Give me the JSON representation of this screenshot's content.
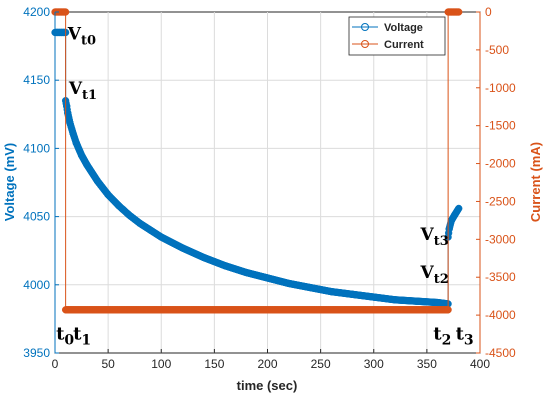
{
  "chart_data": {
    "type": "line",
    "xlabel": "time (sec)",
    "ylabel_left": "Voltage (mV)",
    "ylabel_right": "Current (mA)",
    "xlim": [
      0,
      400
    ],
    "ylim_left": [
      3950,
      4200
    ],
    "ylim_right": [
      -4500,
      0
    ],
    "x_ticks": [
      "0",
      "50",
      "100",
      "150",
      "200",
      "250",
      "300",
      "350",
      "400"
    ],
    "y_left_ticks": [
      "3950",
      "4000",
      "4050",
      "4100",
      "4150",
      "4200"
    ],
    "y_right_ticks": [
      "0",
      "-500",
      "-1000",
      "-1500",
      "-2000",
      "-2500",
      "-3000",
      "-3500",
      "-4000",
      "-4500"
    ],
    "grid": true,
    "legend_position": "top-right",
    "colors": {
      "voltage": "#0072BD",
      "current": "#D95319"
    },
    "series": [
      {
        "name": "Voltage",
        "axis": "left",
        "color": "#0072BD",
        "x": [
          0,
          2,
          4,
          6,
          8,
          10,
          10,
          11,
          12,
          14,
          17,
          20,
          25,
          30,
          40,
          50,
          60,
          70,
          80,
          90,
          100,
          120,
          140,
          160,
          180,
          200,
          220,
          240,
          260,
          280,
          300,
          320,
          340,
          360,
          370,
          370,
          371,
          373,
          376,
          380
        ],
        "y": [
          4185,
          4185,
          4185,
          4185,
          4185,
          4185,
          4135,
          4131,
          4126,
          4119,
          4111,
          4104,
          4095,
          4088,
          4076,
          4066,
          4058,
          4051,
          4045,
          4040,
          4035,
          4027,
          4020,
          4014,
          4009,
          4005,
          4001,
          3998,
          3995,
          3993,
          3991,
          3989,
          3988,
          3987,
          3986,
          4035,
          4041,
          4047,
          4051,
          4056
        ]
      },
      {
        "name": "Current",
        "axis": "right",
        "color": "#D95319",
        "x": [
          0,
          10,
          10,
          370,
          370,
          380
        ],
        "y": [
          0,
          0,
          -3930,
          -3930,
          0,
          0
        ]
      }
    ],
    "annotations": [
      {
        "text": "V",
        "sub": "t0",
        "x": 12,
        "y": 4180
      },
      {
        "text": "V",
        "sub": "t1",
        "x": 13,
        "y": 4140
      },
      {
        "text": "V",
        "sub": "t2",
        "x": 344,
        "y": 4005
      },
      {
        "text": "V",
        "sub": "t3",
        "x": 344,
        "y": 4033
      },
      {
        "text": "t",
        "sub": "0",
        "x": 1,
        "y": 3960
      },
      {
        "text": "t",
        "sub": "1",
        "x": 17,
        "y": 3960
      },
      {
        "text": "t",
        "sub": "2",
        "x": 356,
        "y": 3960
      },
      {
        "text": "t",
        "sub": "3",
        "x": 377,
        "y": 3960
      }
    ]
  }
}
